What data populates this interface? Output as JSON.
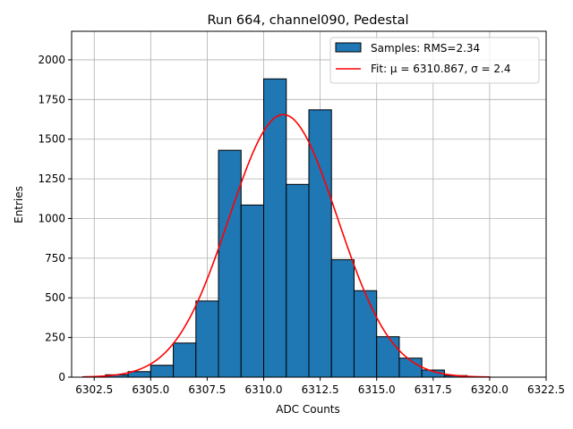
{
  "chart_data": {
    "type": "bar",
    "title": "Run 664, channel090, Pedestal",
    "xlabel": "ADC Counts",
    "ylabel": "Entries",
    "xlim": [
      6301.5,
      6322.5
    ],
    "ylim": [
      0,
      2180
    ],
    "xticks": [
      6302.5,
      6305.0,
      6307.5,
      6310.0,
      6312.5,
      6315.0,
      6317.5,
      6320.0,
      6322.5
    ],
    "xtick_labels": [
      "6302.5",
      "6305.0",
      "6307.5",
      "6310.0",
      "6312.5",
      "6315.0",
      "6317.5",
      "6320.0",
      "6322.5"
    ],
    "yticks": [
      0,
      250,
      500,
      750,
      1000,
      1250,
      1500,
      1750,
      2000
    ],
    "ytick_labels": [
      "0",
      "250",
      "500",
      "750",
      "1000",
      "1250",
      "1500",
      "1750",
      "2000"
    ],
    "grid": true,
    "bins": [
      {
        "left": 6302,
        "right": 6303,
        "count": 3
      },
      {
        "left": 6303,
        "right": 6304,
        "count": 15
      },
      {
        "left": 6304,
        "right": 6305,
        "count": 35
      },
      {
        "left": 6305,
        "right": 6306,
        "count": 75
      },
      {
        "left": 6306,
        "right": 6307,
        "count": 215
      },
      {
        "left": 6307,
        "right": 6308,
        "count": 480
      },
      {
        "left": 6308,
        "right": 6309,
        "count": 1430
      },
      {
        "left": 6309,
        "right": 6310,
        "count": 1085
      },
      {
        "left": 6310,
        "right": 6311,
        "count": 1880
      },
      {
        "left": 6311,
        "right": 6312,
        "count": 1215
      },
      {
        "left": 6312,
        "right": 6313,
        "count": 1685
      },
      {
        "left": 6313,
        "right": 6314,
        "count": 740
      },
      {
        "left": 6314,
        "right": 6315,
        "count": 545
      },
      {
        "left": 6315,
        "right": 6316,
        "count": 255
      },
      {
        "left": 6316,
        "right": 6317,
        "count": 120
      },
      {
        "left": 6317,
        "right": 6318,
        "count": 45
      },
      {
        "left": 6318,
        "right": 6319,
        "count": 10
      },
      {
        "left": 6319,
        "right": 6320,
        "count": 2
      }
    ],
    "fit": {
      "mu": 6310.867,
      "sigma": 2.4,
      "amplitude": 1655,
      "x_range": [
        6302,
        6320
      ]
    },
    "legend": {
      "placement": "top-right",
      "entries": [
        {
          "label": "Samples: RMS=2.34",
          "kind": "patch",
          "color": "#1f77b4"
        },
        {
          "label": "Fit: μ = 6310.867, σ = 2.4",
          "kind": "line",
          "color": "#ff0000"
        }
      ]
    },
    "colors": {
      "bar_fill": "#1f77b4",
      "bar_edge": "#000000",
      "fit_line": "#ff0000",
      "grid": "#b0b0b0"
    }
  }
}
